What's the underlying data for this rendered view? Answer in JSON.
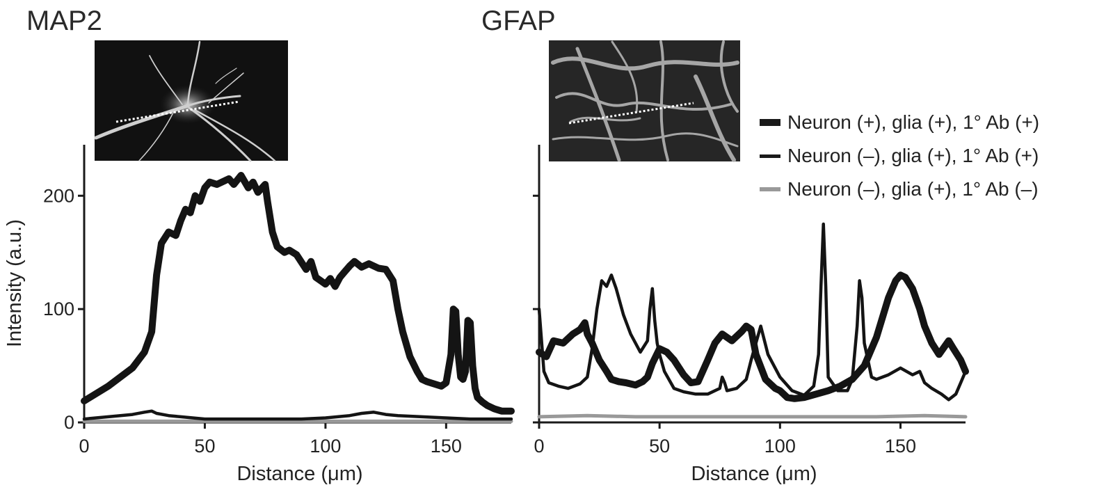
{
  "chart_data": [
    {
      "type": "line",
      "title": "MAP2",
      "xlabel": "Distance (μm)",
      "ylabel": "Intensity (a.u.)",
      "xlim": [
        0,
        177
      ],
      "ylim": [
        0,
        245
      ],
      "xticks": [
        0,
        50,
        100,
        150
      ],
      "yticks": [
        0,
        100,
        200
      ],
      "grid": false,
      "inset": "micrograph with dotted line",
      "series": [
        {
          "name": "Neuron (+), glia (+), 1° Ab (+)",
          "x": [
            0,
            10,
            20,
            25,
            28,
            30,
            32,
            35,
            38,
            40,
            42,
            44,
            46,
            48,
            50,
            52,
            55,
            58,
            60,
            62,
            65,
            68,
            70,
            72,
            75,
            76,
            78,
            80,
            83,
            85,
            88,
            92,
            94,
            96,
            98,
            100,
            102,
            104,
            106,
            108,
            110,
            112,
            115,
            118,
            122,
            125,
            128,
            130,
            132,
            135,
            138,
            140,
            142,
            145,
            148,
            150,
            152,
            153,
            154,
            155,
            156,
            157,
            158,
            159,
            160,
            161,
            162,
            163,
            165,
            167,
            170,
            173,
            177
          ],
          "values": [
            19,
            32,
            48,
            62,
            80,
            130,
            158,
            168,
            165,
            178,
            188,
            185,
            200,
            195,
            207,
            212,
            210,
            213,
            215,
            210,
            218,
            207,
            212,
            203,
            210,
            195,
            168,
            155,
            150,
            152,
            148,
            135,
            142,
            128,
            125,
            122,
            127,
            120,
            128,
            133,
            138,
            142,
            137,
            140,
            136,
            135,
            125,
            100,
            80,
            58,
            45,
            38,
            36,
            34,
            32,
            35,
            60,
            100,
            98,
            60,
            40,
            38,
            45,
            90,
            88,
            50,
            30,
            22,
            18,
            15,
            12,
            10,
            10
          ]
        },
        {
          "name": "Neuron (–), glia (+), 1° Ab (+)",
          "x": [
            0,
            10,
            20,
            25,
            28,
            30,
            35,
            40,
            50,
            60,
            70,
            80,
            90,
            100,
            110,
            115,
            120,
            125,
            130,
            140,
            150,
            160,
            170,
            177
          ],
          "values": [
            3,
            5,
            7,
            9,
            10,
            8,
            6,
            5,
            3,
            3,
            3,
            3,
            3,
            4,
            6,
            8,
            9,
            7,
            6,
            5,
            4,
            3,
            3,
            3
          ]
        },
        {
          "name": "Neuron (–), glia (+), 1° Ab (–)",
          "x": [
            0,
            177
          ],
          "values": [
            1,
            1
          ]
        }
      ]
    },
    {
      "type": "line",
      "title": "GFAP",
      "xlabel": "Distance (μm)",
      "ylabel": "",
      "xlim": [
        0,
        177
      ],
      "ylim": [
        0,
        245
      ],
      "xticks": [
        0,
        50,
        100,
        150
      ],
      "yticks": [
        0,
        100,
        200
      ],
      "grid": false,
      "inset": "micrograph with dotted line",
      "series": [
        {
          "name": "Neuron (+), glia (+), 1° Ab (+)",
          "x": [
            0,
            3,
            6,
            10,
            14,
            17,
            19,
            20,
            22,
            25,
            28,
            30,
            33,
            36,
            40,
            43,
            45,
            47,
            50,
            53,
            56,
            60,
            63,
            66,
            70,
            73,
            76,
            80,
            84,
            86,
            88,
            90,
            94,
            98,
            100,
            103,
            106,
            110,
            115,
            120,
            125,
            130,
            135,
            140,
            145,
            148,
            150,
            152,
            155,
            158,
            160,
            163,
            166,
            170,
            172,
            175,
            177
          ],
          "values": [
            62,
            58,
            72,
            70,
            78,
            82,
            88,
            78,
            70,
            55,
            45,
            38,
            36,
            35,
            33,
            36,
            40,
            52,
            65,
            62,
            55,
            42,
            35,
            36,
            55,
            70,
            78,
            72,
            80,
            85,
            82,
            60,
            38,
            30,
            28,
            22,
            21,
            22,
            25,
            28,
            32,
            38,
            50,
            75,
            110,
            125,
            130,
            128,
            118,
            100,
            85,
            70,
            60,
            72,
            65,
            55,
            45
          ]
        },
        {
          "name": "Neuron (–), glia (+), 1° Ab (+)",
          "x": [
            0,
            2,
            4,
            8,
            12,
            17,
            20,
            22,
            24,
            26,
            28,
            30,
            32,
            35,
            38,
            42,
            45,
            46,
            47,
            48,
            49,
            50,
            52,
            56,
            60,
            65,
            70,
            75,
            76,
            77,
            78,
            82,
            86,
            88,
            90,
            92,
            95,
            100,
            105,
            110,
            114,
            116,
            117,
            118,
            119,
            120,
            124,
            128,
            130,
            132,
            133,
            134,
            135,
            138,
            140,
            145,
            150,
            155,
            158,
            160,
            163,
            167,
            170,
            173,
            175,
            177
          ],
          "values": [
            100,
            45,
            35,
            32,
            30,
            34,
            40,
            65,
            100,
            125,
            120,
            130,
            118,
            95,
            78,
            62,
            72,
            100,
            118,
            90,
            70,
            60,
            45,
            30,
            27,
            25,
            25,
            30,
            40,
            35,
            28,
            30,
            38,
            55,
            70,
            85,
            60,
            40,
            28,
            24,
            32,
            60,
            120,
            175,
            120,
            40,
            28,
            28,
            38,
            85,
            125,
            110,
            70,
            40,
            38,
            42,
            48,
            42,
            45,
            35,
            30,
            25,
            20,
            25,
            35,
            45
          ]
        },
        {
          "name": "Neuron (–), glia (+), 1° Ab (–)",
          "x": [
            0,
            20,
            40,
            60,
            80,
            100,
            120,
            140,
            160,
            177
          ],
          "values": [
            5,
            6,
            5,
            5,
            5,
            5,
            5,
            5,
            6,
            5
          ]
        }
      ]
    }
  ],
  "legend": [
    {
      "label": "Neuron (+), glia (+), 1° Ab (+)",
      "color": "#1a1a1a"
    },
    {
      "label": "Neuron (–), glia (+), 1° Ab (+)",
      "color": "#1a1a1a"
    },
    {
      "label": "Neuron (–), glia (+), 1° Ab (–)",
      "color": "#999999"
    }
  ]
}
